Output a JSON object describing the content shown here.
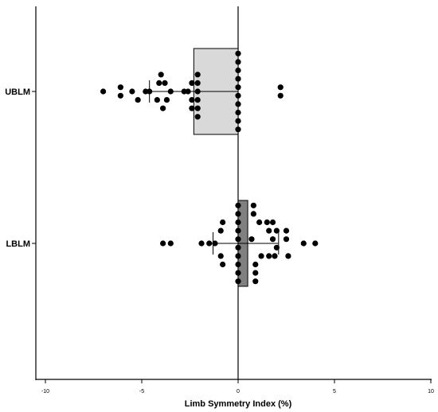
{
  "chart_data": {
    "type": "box-scatter",
    "orientation": "horizontal",
    "xlabel": "Limb Symmetry Index (%)",
    "xlim": [
      -10,
      10
    ],
    "xticks": [
      "-10",
      "-5",
      "0",
      "5",
      "10"
    ],
    "categories": [
      "UBLM",
      "LBLM"
    ],
    "groups": [
      {
        "name": "UBLM",
        "box": {
          "q1": -2.3,
          "median": 0,
          "q3": 0
        },
        "mean": -2.3,
        "sd": 2.3,
        "fill": "#d9d9d9",
        "points": [
          [
            0,
            4.5
          ],
          [
            0,
            3.5
          ],
          [
            0,
            2.5
          ],
          [
            0,
            1.5
          ],
          [
            0,
            0.5
          ],
          [
            0,
            -0.5
          ],
          [
            0,
            -1.5
          ],
          [
            0,
            -2.5
          ],
          [
            0,
            -3.5
          ],
          [
            0,
            -4.5
          ],
          [
            -2.1,
            2
          ],
          [
            -2.1,
            1
          ],
          [
            -2.1,
            0
          ],
          [
            -2.1,
            -1
          ],
          [
            -2.1,
            -2
          ],
          [
            -2.1,
            -3
          ],
          [
            -2.4,
            1
          ],
          [
            -2.4,
            -1
          ],
          [
            -2.4,
            -2
          ],
          [
            -2.6,
            0
          ],
          [
            -2.8,
            0
          ],
          [
            -3.5,
            0
          ],
          [
            -3.7,
            -1
          ],
          [
            -3.8,
            1
          ],
          [
            -3.9,
            -2
          ],
          [
            -4.0,
            2
          ],
          [
            -4.1,
            1
          ],
          [
            -4.2,
            -1
          ],
          [
            -4.6,
            0
          ],
          [
            -4.8,
            0
          ],
          [
            -5.2,
            -1
          ],
          [
            -5.5,
            0
          ],
          [
            -6.1,
            0.5
          ],
          [
            -6.1,
            -0.5
          ],
          [
            -7.0,
            0
          ],
          [
            2.2,
            0.5
          ],
          [
            2.2,
            -0.5
          ]
        ]
      },
      {
        "name": "LBLM",
        "box": {
          "q1": 0,
          "median": 0,
          "q3": 0.5
        },
        "mean": 0.4,
        "sd": 1.7,
        "fill": "#808080",
        "points": [
          [
            0,
            4.5
          ],
          [
            0,
            3.5
          ],
          [
            0,
            2.5
          ],
          [
            0,
            1.5
          ],
          [
            0,
            0.5
          ],
          [
            0,
            -0.5
          ],
          [
            0,
            -1.5
          ],
          [
            0,
            -2.5
          ],
          [
            0,
            -3.5
          ],
          [
            0,
            -4.5
          ],
          [
            0.8,
            4.5
          ],
          [
            0.8,
            3.5
          ],
          [
            0.9,
            -3.5
          ],
          [
            0.9,
            -4.5
          ],
          [
            0.9,
            -2.5
          ],
          [
            1.1,
            2.5
          ],
          [
            1.2,
            -1.5
          ],
          [
            0.7,
            0.5
          ],
          [
            1.5,
            2.5
          ],
          [
            1.6,
            1.5
          ],
          [
            1.6,
            -1.5
          ],
          [
            1.9,
            -1.5
          ],
          [
            1.8,
            2.5
          ],
          [
            1.8,
            0.5
          ],
          [
            2.0,
            1.5
          ],
          [
            2.0,
            -0.5
          ],
          [
            2.5,
            0.5
          ],
          [
            2.6,
            -1.5
          ],
          [
            2.5,
            1.5
          ],
          [
            3.4,
            0
          ],
          [
            4.0,
            0
          ],
          [
            -0.8,
            2.5
          ],
          [
            -0.9,
            1.5
          ],
          [
            -0.9,
            -1.5
          ],
          [
            -0.8,
            -2.5
          ],
          [
            -1.2,
            0
          ],
          [
            -1.5,
            0
          ],
          [
            -1.9,
            0
          ],
          [
            -3.5,
            0
          ],
          [
            -3.9,
            0
          ]
        ]
      }
    ]
  }
}
